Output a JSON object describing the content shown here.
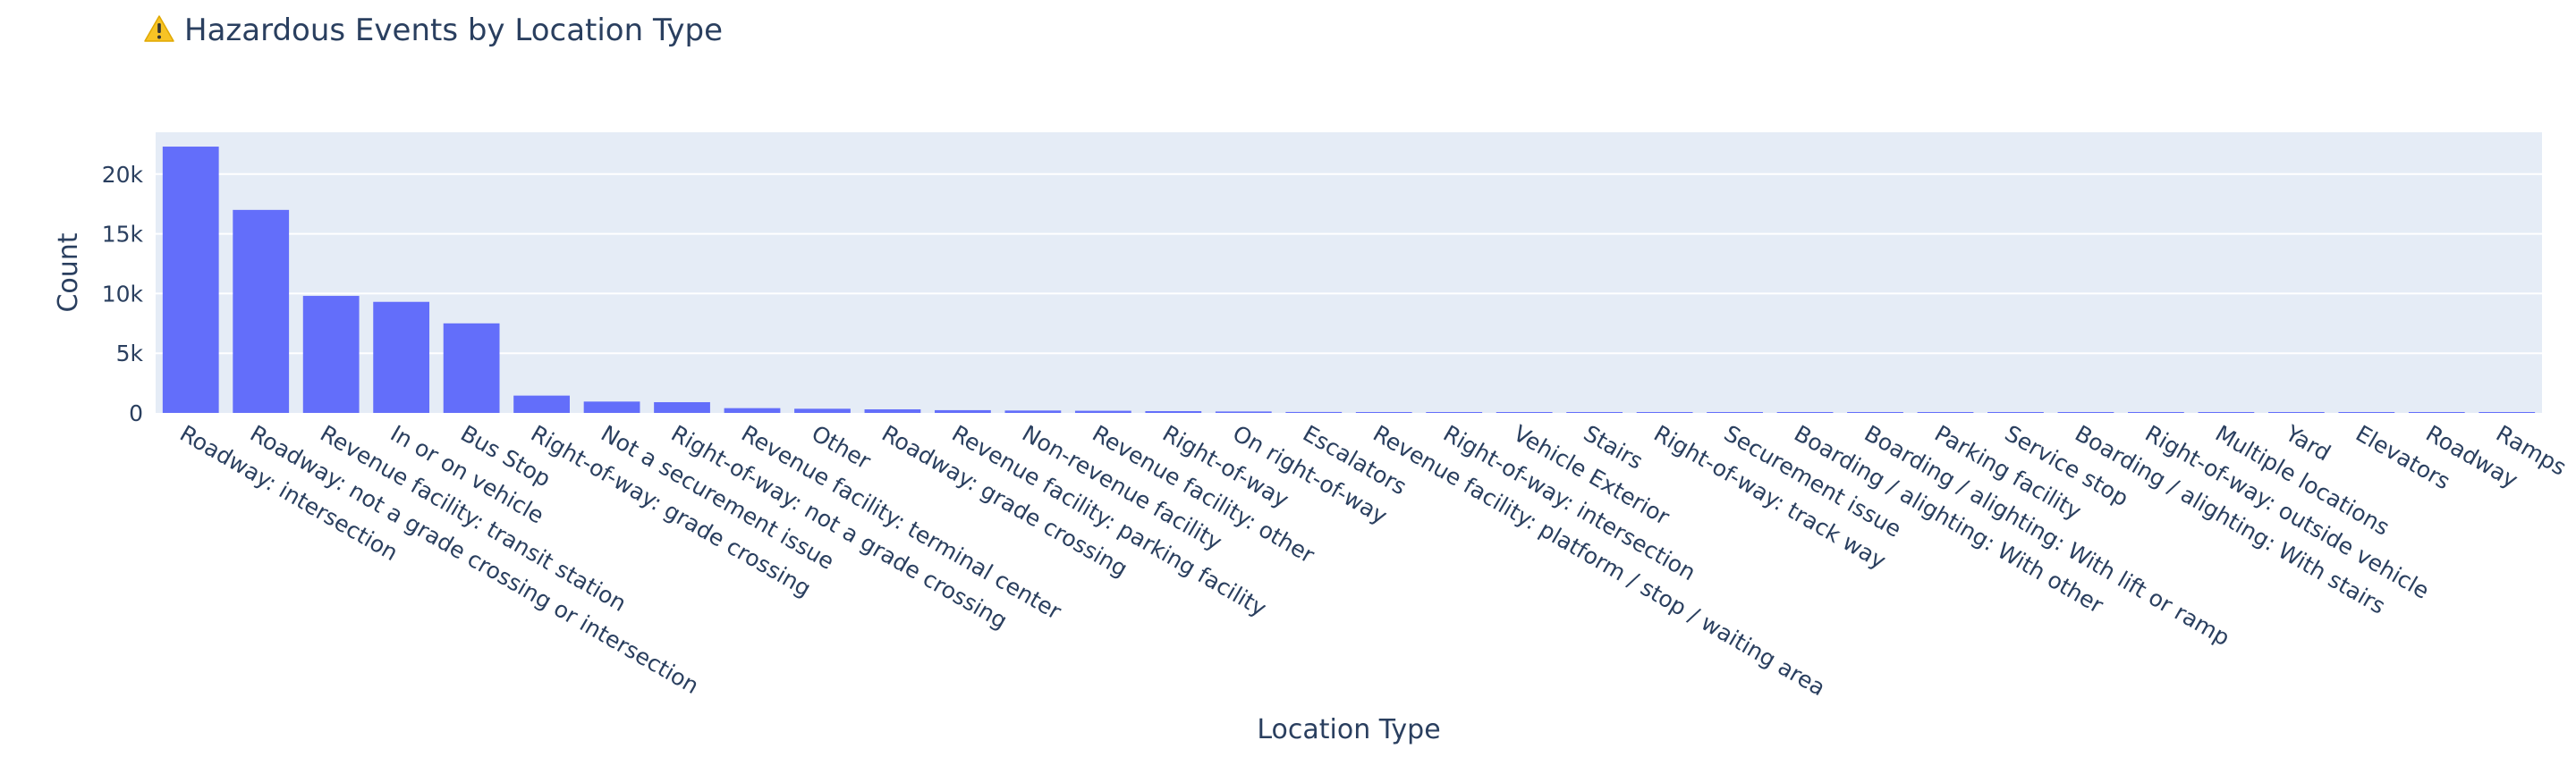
{
  "chart_data": {
    "type": "bar",
    "title": "Hazardous Events by Location Type",
    "title_icon": "warning-icon",
    "xlabel": "Location Type",
    "ylabel": "Count",
    "ylim": [
      0,
      23500
    ],
    "yticks": [
      0,
      5000,
      10000,
      15000,
      20000
    ],
    "ytick_labels": [
      "0",
      "5k",
      "10k",
      "15k",
      "20k"
    ],
    "bar_color": "#636efa",
    "plot_bg": "#e5ecf6",
    "grid": true,
    "categories": [
      "Roadway: intersection",
      "Roadway: not a grade crossing or intersection",
      "Revenue facility: transit station",
      "In or on vehicle",
      "Bus Stop",
      "Right-of-way: grade crossing",
      "Not a securement issue",
      "Right-of-way: not a grade crossing",
      "Revenue facility: terminal center",
      "Other",
      "Roadway: grade crossing",
      "Revenue facility: parking facility",
      "Non-revenue facility",
      "Revenue facility: other",
      "Right-of-way",
      "On right-of-way",
      "Escalators",
      "Revenue facility: platform / stop / waiting area",
      "Right-of-way: intersection",
      "Vehicle Exterior",
      "Stairs",
      "Right-of-way: track way",
      "Securement issue",
      "Boarding / alighting: With other",
      "Boarding / alighting: With lift or ramp",
      "Parking facility",
      "Service stop",
      "Boarding / alighting: With stairs",
      "Right-of-way: outside vehicle",
      "Multiple locations",
      "Yard",
      "Elevators",
      "Roadway",
      "Ramps"
    ],
    "values": [
      22300,
      17000,
      9800,
      9300,
      7500,
      1450,
      950,
      900,
      400,
      350,
      300,
      230,
      200,
      180,
      150,
      120,
      80,
      60,
      50,
      45,
      40,
      35,
      30,
      25,
      22,
      20,
      18,
      15,
      12,
      10,
      8,
      6,
      4,
      3
    ]
  }
}
